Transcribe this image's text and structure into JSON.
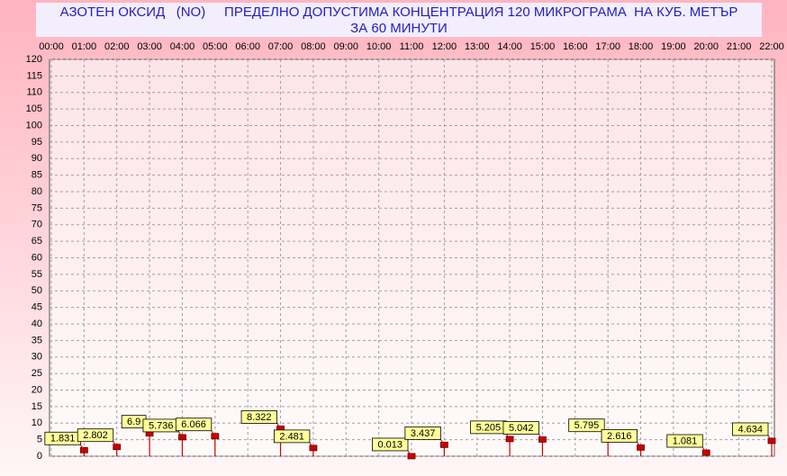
{
  "chart_data": {
    "type": "stem",
    "title": "АЗОТЕН ОКСИД   (NO)     ПРЕДЕЛНО ДОПУСТИМА КОНЦЕНТРАЦИЯ 120 МИКРОГРАМА  НА КУБ. МЕТЪР",
    "subtitle": "ЗА 60 МИНУТИ",
    "categories": [
      "00:00",
      "01:00",
      "02:00",
      "03:00",
      "04:00",
      "05:00",
      "06:00",
      "07:00",
      "08:00",
      "09:00",
      "10:00",
      "11:00",
      "12:00",
      "13:00",
      "14:00",
      "15:00",
      "16:00",
      "17:00",
      "18:00",
      "19:00",
      "20:00",
      "21:00",
      "22:00"
    ],
    "series": [
      {
        "name": "NO",
        "color": "#cc0000",
        "values": [
          null,
          1.831,
          2.802,
          6.9,
          5.736,
          6.066,
          null,
          8.322,
          2.481,
          null,
          null,
          0.013,
          3.437,
          null,
          5.205,
          5.042,
          null,
          5.795,
          2.616,
          null,
          1.081,
          null,
          4.634
        ]
      }
    ],
    "ylim": [
      0,
      120
    ],
    "yticks": [
      0,
      5,
      10,
      15,
      20,
      25,
      30,
      35,
      40,
      45,
      50,
      55,
      60,
      65,
      70,
      75,
      80,
      85,
      90,
      95,
      100,
      105,
      110,
      115,
      120
    ],
    "grid": true
  }
}
